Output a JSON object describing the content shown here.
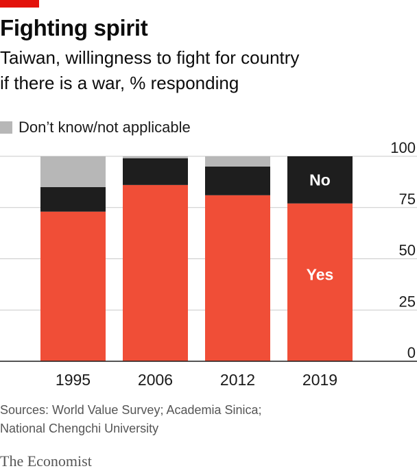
{
  "header": {
    "title": "Fighting spirit",
    "subtitle_line1": "Taiwan, willingness to fight for country",
    "subtitle_line2": "if there is a war, % responding"
  },
  "legend": {
    "label": "Don’t know/not applicable"
  },
  "chart_data": {
    "type": "bar",
    "stacked": true,
    "categories": [
      "1995",
      "2006",
      "2012",
      "2019"
    ],
    "series": [
      {
        "name": "Yes",
        "values": [
          73,
          86,
          81,
          77
        ],
        "color": "#f04e37"
      },
      {
        "name": "No",
        "values": [
          12,
          13,
          14,
          23
        ],
        "color": "#1e1e1e"
      },
      {
        "name": "Don’t know/not applicable",
        "values": [
          15,
          1,
          5,
          0
        ],
        "color": "#b7b7b7"
      }
    ],
    "ylim": [
      0,
      100
    ],
    "yticks": [
      0,
      25,
      50,
      75,
      100
    ],
    "ytick_labels": [
      "0",
      "25",
      "50",
      "75",
      "100"
    ],
    "y_axis_side": "right",
    "grid": true,
    "annotations": [
      {
        "text": "Yes",
        "category": "2019",
        "series": "Yes"
      },
      {
        "text": "No",
        "category": "2019",
        "series": "No"
      }
    ]
  },
  "footer": {
    "source_line1": "Sources: World Value Survey; Academia Sinica;",
    "source_line2": "National Chengchi University",
    "brand": "The Economist"
  }
}
